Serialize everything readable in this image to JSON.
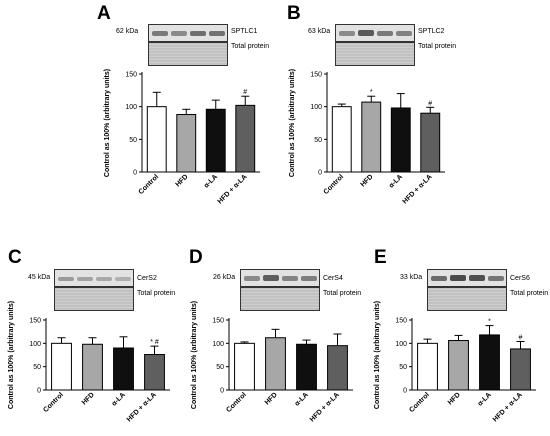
{
  "chart_data": [
    {
      "panel": "A",
      "type": "bar",
      "protein": "SPTLC1",
      "kda": "62 kDa",
      "total": "Total protein",
      "ylabel": "Control as 100% (arbitrary units)",
      "ylim": [
        0,
        150
      ],
      "yticks": [
        0,
        50,
        100,
        150
      ],
      "categories": [
        "Control",
        "HFD",
        "α-LA",
        "HFD + α-LA"
      ],
      "values": [
        100,
        88,
        96,
        102
      ],
      "errors": [
        22,
        8,
        14,
        14
      ],
      "annotations": [
        "",
        "",
        "",
        "#"
      ]
    },
    {
      "panel": "B",
      "type": "bar",
      "protein": "SPTLC2",
      "kda": "63 kDa",
      "total": "Total protein",
      "ylabel": "Control as 100% (arbitrary units)",
      "ylim": [
        0,
        150
      ],
      "yticks": [
        0,
        50,
        100,
        150
      ],
      "categories": [
        "Control",
        "HFD",
        "α-LA",
        "HFD + α-LA"
      ],
      "values": [
        100,
        107,
        98,
        90
      ],
      "errors": [
        4,
        9,
        22,
        9
      ],
      "annotations": [
        "",
        "*",
        "",
        "#"
      ]
    },
    {
      "panel": "C",
      "type": "bar",
      "protein": "CerS2",
      "kda": "45 kDa",
      "total": "Total protein",
      "ylabel": "Control as 100% (arbitrary units)",
      "ylim": [
        0,
        150
      ],
      "yticks": [
        0,
        50,
        100,
        150
      ],
      "categories": [
        "Control",
        "HFD",
        "α-LA",
        "HFD + α-LA"
      ],
      "values": [
        100,
        98,
        90,
        76
      ],
      "errors": [
        12,
        14,
        24,
        18
      ],
      "annotations": [
        "",
        "",
        "",
        "* #"
      ]
    },
    {
      "panel": "D",
      "type": "bar",
      "protein": "CerS4",
      "kda": "26 kDa",
      "total": "Total protein",
      "ylabel": "Control as 100% (arbitrary units)",
      "ylim": [
        0,
        150
      ],
      "yticks": [
        0,
        50,
        100,
        150
      ],
      "categories": [
        "Control",
        "HFD",
        "α-LA",
        "HFD + α-LA"
      ],
      "values": [
        100,
        112,
        98,
        95
      ],
      "errors": [
        3,
        18,
        9,
        25
      ],
      "annotations": [
        "",
        "",
        "",
        ""
      ]
    },
    {
      "panel": "E",
      "type": "bar",
      "protein": "CerS6",
      "kda": "33 kDa",
      "total": "Total protein",
      "ylabel": "Control as 100% (arbitrary units)",
      "ylim": [
        0,
        150
      ],
      "yticks": [
        0,
        50,
        100,
        150
      ],
      "categories": [
        "Control",
        "HFD",
        "α-LA",
        "HFD + α-LA"
      ],
      "values": [
        100,
        106,
        118,
        88
      ],
      "errors": [
        9,
        11,
        20,
        16
      ],
      "annotations": [
        "",
        "",
        "*",
        "#"
      ]
    }
  ],
  "colors": {
    "bar_fills": [
      "#ffffff",
      "#a7a7a7",
      "#0f0f0f",
      "#5f5f5f"
    ],
    "outline": "#000000"
  }
}
